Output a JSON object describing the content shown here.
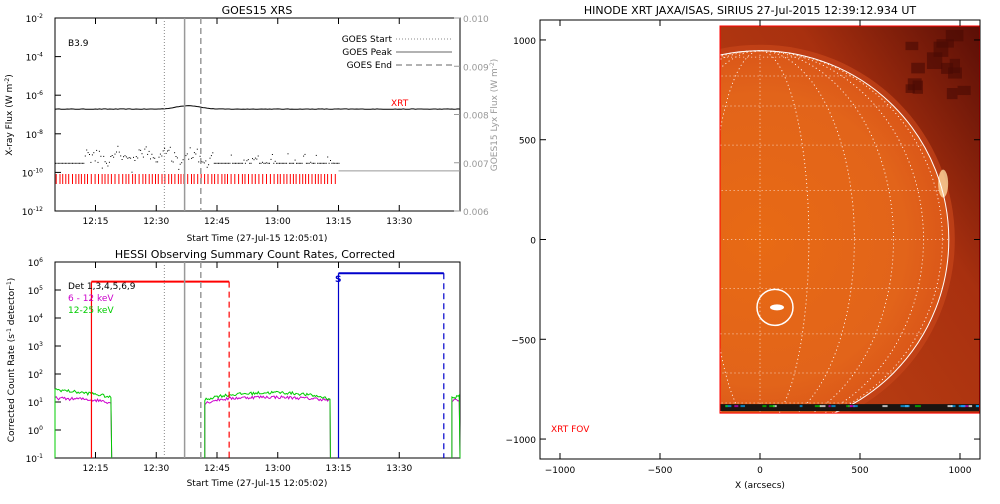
{
  "chart_data": [
    {
      "type": "line",
      "title": "GOES15 XRS",
      "xlabel": "Start Time (27-Jul-15 12:05:01)",
      "ylabel": "X-ray Flux (W m",
      "ylabel_sup": "-2",
      "ylabel_close": ")",
      "y2label": "GOES15 Lyx Flux (W m",
      "y2label_sup": "-2",
      "y2label_close": ")",
      "xlim_min": [
        5,
        55
      ],
      "x_ticks": [
        {
          "value": 15,
          "label": "12:15"
        },
        {
          "value": 30,
          "label": "12:30"
        },
        {
          "value": 45,
          "label": "12:45"
        },
        {
          "value": 60,
          "label": "13:00"
        },
        {
          "value": 75,
          "label": "13:15"
        },
        {
          "value": 90,
          "label": "13:30"
        }
      ],
      "y_ticks": [
        {
          "exp": -2,
          "label": "10",
          "sup": "-2"
        },
        {
          "exp": -4,
          "label": "10",
          "sup": "-4"
        },
        {
          "exp": -6,
          "label": "10",
          "sup": "-6"
        },
        {
          "exp": -8,
          "label": "10",
          "sup": "-8"
        },
        {
          "exp": -10,
          "label": "10",
          "sup": "-10"
        },
        {
          "exp": -12,
          "label": "10",
          "sup": "-12"
        }
      ],
      "y2_ticks": [
        "0.010",
        "0.009",
        "0.008",
        "0.007",
        "0.006"
      ],
      "annotation": "B3.9",
      "xrt_label": "XRT",
      "legend": [
        {
          "name": "GOES Start",
          "style": "dotted"
        },
        {
          "name": "GOES Peak",
          "style": "solid"
        },
        {
          "name": "GOES End",
          "style": "dashed"
        }
      ],
      "markers_min": {
        "start": 32,
        "peak": 37,
        "end": 41
      }
    },
    {
      "type": "line",
      "title": "HESSI Observing Summary Count Rates, Corrected",
      "xlabel": "Start Time (27-Jul-15 12:05:02)",
      "ylabel": "Corrected Count Rate (s",
      "ylabel_sup": "-1",
      "ylabel_mid": " detector",
      "ylabel_sup2": "-1",
      "ylabel_close": ")",
      "x_ticks": [
        {
          "value": 15,
          "label": "12:15"
        },
        {
          "value": 30,
          "label": "12:30"
        },
        {
          "value": 45,
          "label": "12:45"
        },
        {
          "value": 60,
          "label": "13:00"
        },
        {
          "value": 75,
          "label": "13:15"
        },
        {
          "value": 90,
          "label": "13:30"
        }
      ],
      "y_ticks": [
        {
          "exp": 6,
          "label": "10",
          "sup": "6"
        },
        {
          "exp": 5,
          "label": "10",
          "sup": "5"
        },
        {
          "exp": 4,
          "label": "10",
          "sup": "4"
        },
        {
          "exp": 3,
          "label": "10",
          "sup": "3"
        },
        {
          "exp": 2,
          "label": "10",
          "sup": "2"
        },
        {
          "exp": 1,
          "label": "10",
          "sup": "1"
        },
        {
          "exp": 0,
          "label": "10",
          "sup": "0"
        },
        {
          "exp": -1,
          "label": "10",
          "sup": "-1"
        }
      ],
      "legend": [
        {
          "name": "Det 1,3,4,5,6,9",
          "color": "#000000"
        },
        {
          "name": "6 - 12 keV",
          "color": "#cc00cc"
        },
        {
          "name": "12-25 keV",
          "color": "#00cc00"
        }
      ],
      "s_label": "S",
      "markers_min": {
        "start": 32,
        "peak": 37,
        "end": 41
      },
      "red_interval_min": [
        14,
        48
      ],
      "blue_interval_min": [
        75,
        101
      ],
      "series": [
        {
          "name": "6 - 12 keV",
          "color": "#cc00cc",
          "segments": [
            {
              "x": [
                5,
                8,
                11,
                14,
                17,
                19
              ],
              "y": [
                14,
                13,
                13,
                12,
                11,
                9
              ]
            },
            {
              "x": [
                42,
                45,
                50,
                55,
                60,
                65,
                70,
                73
              ],
              "y": [
                9,
                12,
                14,
                15,
                15,
                14,
                13,
                11
              ]
            },
            {
              "x": [
                103,
                105
              ],
              "y": [
                11,
                12
              ]
            }
          ]
        },
        {
          "name": "12-25 keV",
          "color": "#00cc00",
          "segments": [
            {
              "x": [
                5,
                8,
                11,
                14,
                17,
                19
              ],
              "y": [
                28,
                25,
                22,
                20,
                17,
                14
              ]
            },
            {
              "x": [
                42,
                45,
                50,
                55,
                60,
                65,
                70,
                73
              ],
              "y": [
                12,
                16,
                19,
                21,
                22,
                20,
                16,
                13
              ]
            },
            {
              "x": [
                103,
                105
              ],
              "y": [
                14,
                16
              ]
            }
          ]
        }
      ]
    },
    {
      "type": "heatmap",
      "title": "HINODE XRT JAXA/ISAS, SIRIUS 27-Jul-2015 12:39:12.934 UT",
      "xlabel": "X (arcsecs)",
      "xlim": [
        -1100,
        1100
      ],
      "ylim": [
        -1100,
        1100
      ],
      "x_ticks": [
        -1000,
        -500,
        0,
        500,
        1000
      ],
      "y_ticks": [
        1000,
        500,
        0,
        -500,
        -1000
      ],
      "fov_label": "XRT FOV",
      "fov_box": {
        "x": [
          -200,
          1100
        ],
        "y": [
          -870,
          1070
        ]
      },
      "sun_radius": 944,
      "flare_circle": {
        "x": 75,
        "y": -340,
        "r": 90
      }
    }
  ]
}
